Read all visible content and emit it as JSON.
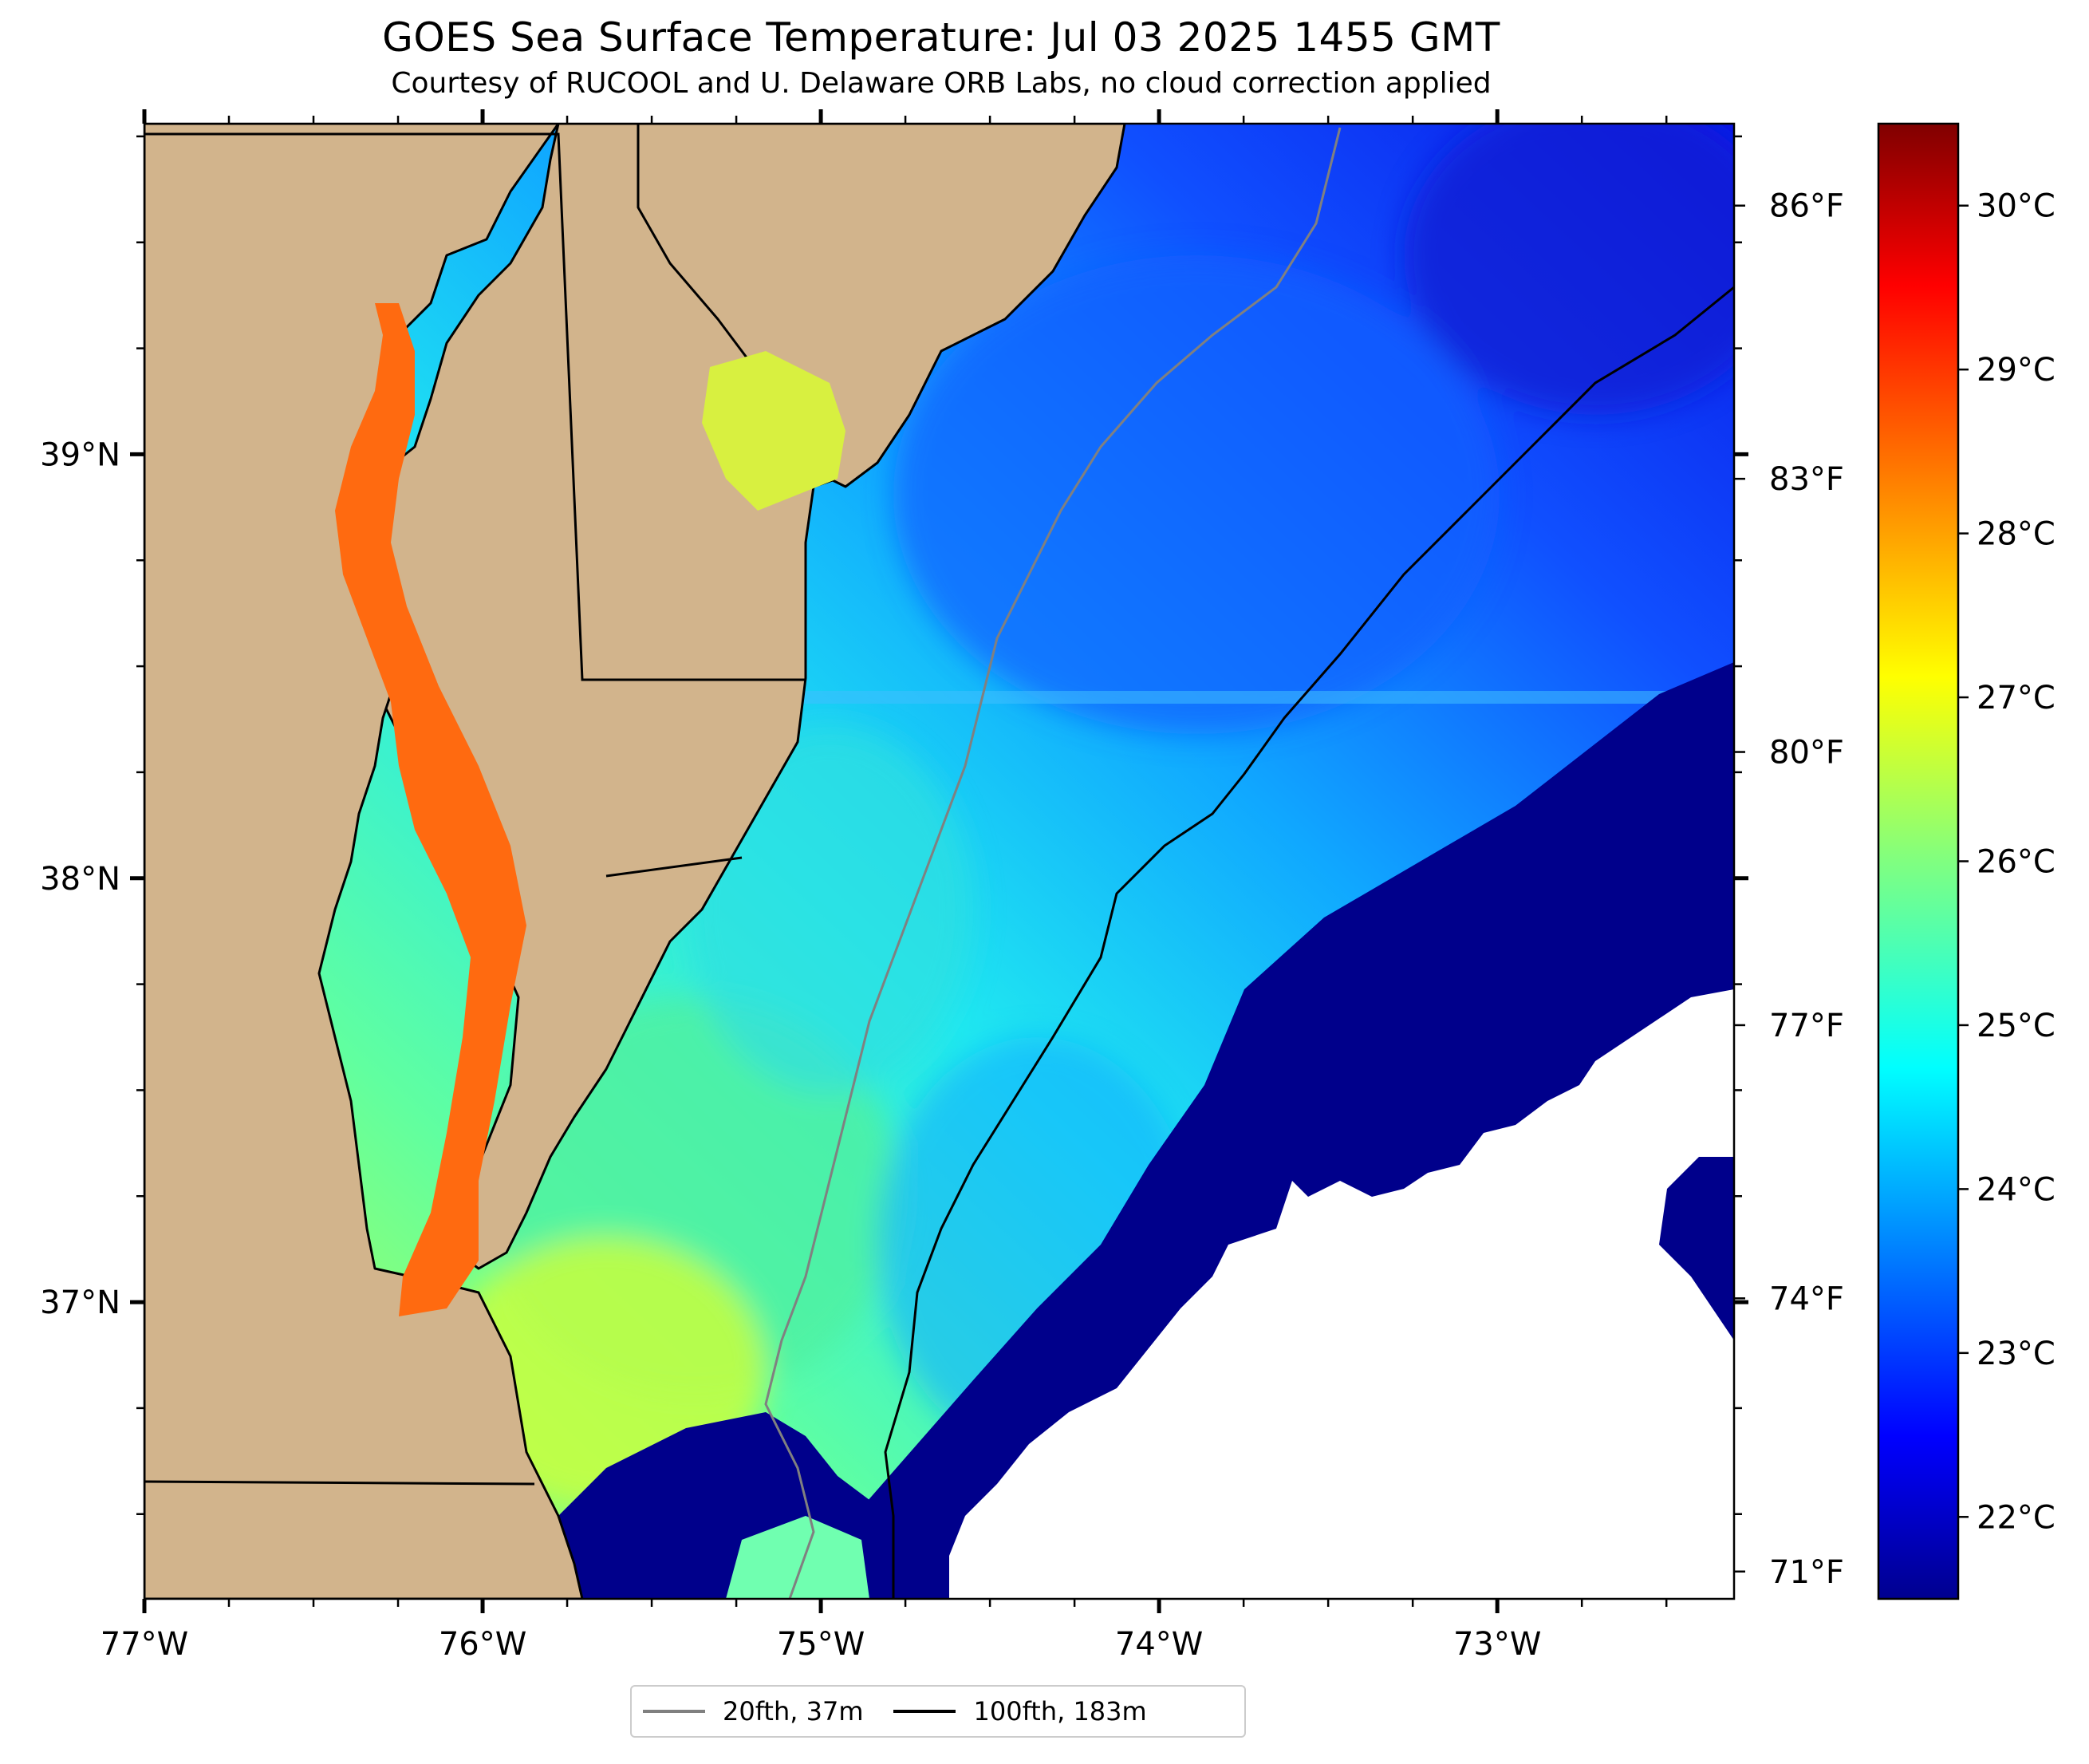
{
  "header": {
    "title": "GOES Sea Surface Temperature: Jul 03 2025 1455 GMT",
    "subtitle": "Courtesy of RUCOOL and U. Delaware ORB Labs, no cloud correction applied"
  },
  "map": {
    "extent": {
      "lon_min": -77.0,
      "lon_max": -72.3,
      "lat_min": 36.3,
      "lat_max": 39.78
    },
    "land_color": "#d2b48c",
    "cloud_mask_color": "#ffffff",
    "x_tick_labels": [
      "77°W",
      "76°W",
      "75°W",
      "74°W",
      "73°W"
    ],
    "y_tick_labels": [
      "39°N",
      "38°N",
      "37°N"
    ],
    "y_tick_labels_right": [
      "86°F",
      "83°F",
      "80°F",
      "77°F",
      "74°F",
      "71°F"
    ]
  },
  "colorbar": {
    "colormap": "jet",
    "min_c": 21.5,
    "max_c": 30.5,
    "tick_labels": [
      "30°C",
      "29°C",
      "28°C",
      "27°C",
      "26°C",
      "25°C",
      "24°C",
      "23°C",
      "22°C"
    ]
  },
  "legend": {
    "items": [
      {
        "label": "20fth, 37m",
        "color": "#808080"
      },
      {
        "label": "100fth, 183m",
        "color": "#000000"
      }
    ]
  },
  "colors": {
    "cold": "#00008b",
    "warm_bay": "#ff6a10",
    "shelf": "#2ef0c8",
    "offshore": "#1040ff"
  }
}
